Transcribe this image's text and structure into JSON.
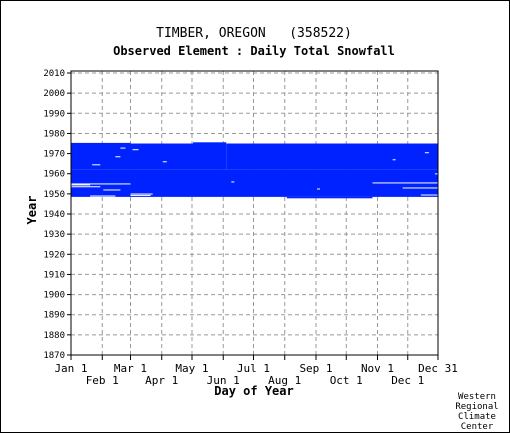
{
  "chart_data": {
    "type": "heatmap",
    "title": "TIMBER, OREGON   (358522)",
    "subtitle": "Observed Element : Daily Total Snowfall",
    "xlabel": "Day of Year",
    "ylabel": "Year",
    "xlim": [
      1,
      365
    ],
    "ylim": [
      1870,
      2011
    ],
    "y_ticks": [
      1870,
      1880,
      1890,
      1900,
      1910,
      1920,
      1930,
      1940,
      1950,
      1960,
      1970,
      1980,
      1990,
      2000,
      2010
    ],
    "x_ticks_upper": [
      {
        "label": "Jan 1",
        "day": 1
      },
      {
        "label": "Mar 1",
        "day": 60
      },
      {
        "label": "May 1",
        "day": 121
      },
      {
        "label": "Jul 1",
        "day": 182
      },
      {
        "label": "Sep 1",
        "day": 244
      },
      {
        "label": "Nov 1",
        "day": 305
      },
      {
        "label": "Dec 31",
        "day": 365
      }
    ],
    "x_ticks_lower": [
      {
        "label": "Feb 1",
        "day": 32
      },
      {
        "label": "Apr 1",
        "day": 91
      },
      {
        "label": "Jun 1",
        "day": 152
      },
      {
        "label": "Aug 1",
        "day": 213
      },
      {
        "label": "Oct 1",
        "day": 274
      },
      {
        "label": "Dec 1",
        "day": 335
      }
    ],
    "grid": true,
    "data_color": "#0022ff",
    "observed_periods": [
      {
        "start_year": 1948.5,
        "end_year": 1962.2,
        "start_day": 1,
        "end_day": 365
      },
      {
        "start_year": 1962.2,
        "end_year": 1975.3,
        "start_day": 1,
        "end_day": 60
      },
      {
        "start_year": 1962.2,
        "end_year": 1975.0,
        "start_day": 60,
        "end_day": 122
      },
      {
        "start_year": 1962.2,
        "end_year": 1975.6,
        "start_day": 122,
        "end_day": 155
      },
      {
        "start_year": 1962.2,
        "end_year": 1975.0,
        "start_day": 155,
        "end_day": 365
      },
      {
        "start_year": 1947.8,
        "end_year": 1948.5,
        "start_day": 215,
        "end_day": 300
      }
    ],
    "gaps": [
      {
        "year": 1955.0,
        "start_day": 1,
        "end_day": 60
      },
      {
        "year": 1954.5,
        "start_day": 1,
        "end_day": 20
      },
      {
        "year": 1953.6,
        "start_day": 1,
        "end_day": 30
      },
      {
        "year": 1952.0,
        "start_day": 33,
        "end_day": 50
      },
      {
        "year": 1950.0,
        "start_day": 60,
        "end_day": 82
      },
      {
        "year": 1949.3,
        "start_day": 60,
        "end_day": 80
      },
      {
        "year": 1949.0,
        "start_day": 20,
        "end_day": 45
      },
      {
        "year": 1955.5,
        "start_day": 300,
        "end_day": 365
      },
      {
        "year": 1953.0,
        "start_day": 330,
        "end_day": 365
      },
      {
        "year": 1949.5,
        "start_day": 348,
        "end_day": 365
      },
      {
        "year": 1964.5,
        "start_day": 22,
        "end_day": 30
      },
      {
        "year": 1968.5,
        "start_day": 45,
        "end_day": 50
      },
      {
        "year": 1972.8,
        "start_day": 50,
        "end_day": 55
      },
      {
        "year": 1972.0,
        "start_day": 62,
        "end_day": 68
      },
      {
        "year": 1966.0,
        "start_day": 92,
        "end_day": 96
      },
      {
        "year": 1956.0,
        "start_day": 160,
        "end_day": 163
      },
      {
        "year": 1952.5,
        "start_day": 245,
        "end_day": 248
      },
      {
        "year": 1967.0,
        "start_day": 320,
        "end_day": 323
      },
      {
        "year": 1970.5,
        "start_day": 352,
        "end_day": 356
      },
      {
        "year": 1960.0,
        "start_day": 362,
        "end_day": 365
      }
    ],
    "credit": [
      "Western",
      "Regional",
      "Climate",
      "Center"
    ]
  }
}
